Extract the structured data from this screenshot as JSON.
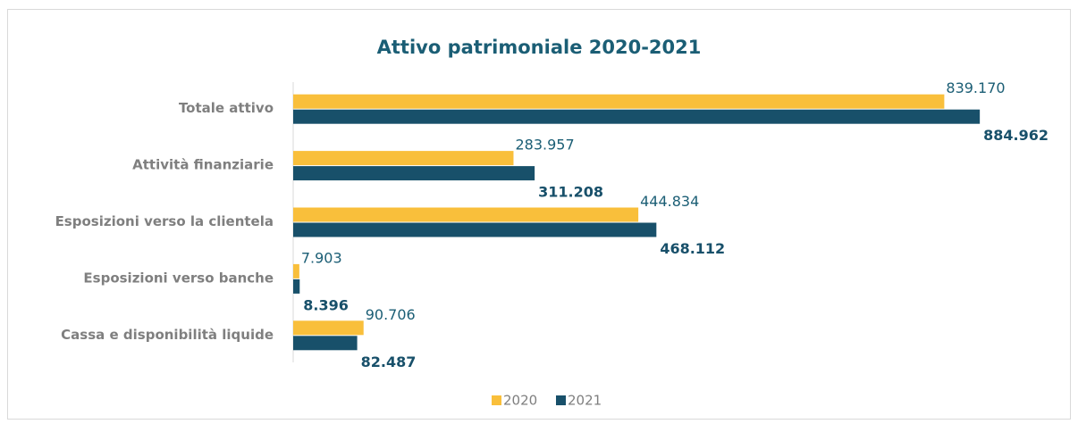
{
  "chart_data": {
    "type": "bar",
    "orientation": "horizontal",
    "title": "Attivo patrimoniale 2020-2021",
    "categories": [
      "Totale attivo",
      "Attività finanziarie",
      "Esposizioni verso la clientela",
      "Esposizioni verso banche",
      "Cassa e disponibilità liquide"
    ],
    "series": [
      {
        "name": "2020",
        "color": "#f9bf3b",
        "values": [
          839170,
          283957,
          444834,
          7903,
          90706
        ],
        "value_labels": [
          "839.170",
          "283.957",
          "444.834",
          "7.903",
          "90.706"
        ]
      },
      {
        "name": "2021",
        "color": "#18506a",
        "values": [
          884962,
          311208,
          468112,
          8396,
          82487
        ],
        "value_labels": [
          "884.962",
          "311.208",
          "468.112",
          "8.396",
          "82.487"
        ]
      }
    ],
    "xlim": [
      0,
      1000000
    ],
    "legend": "bottom"
  }
}
